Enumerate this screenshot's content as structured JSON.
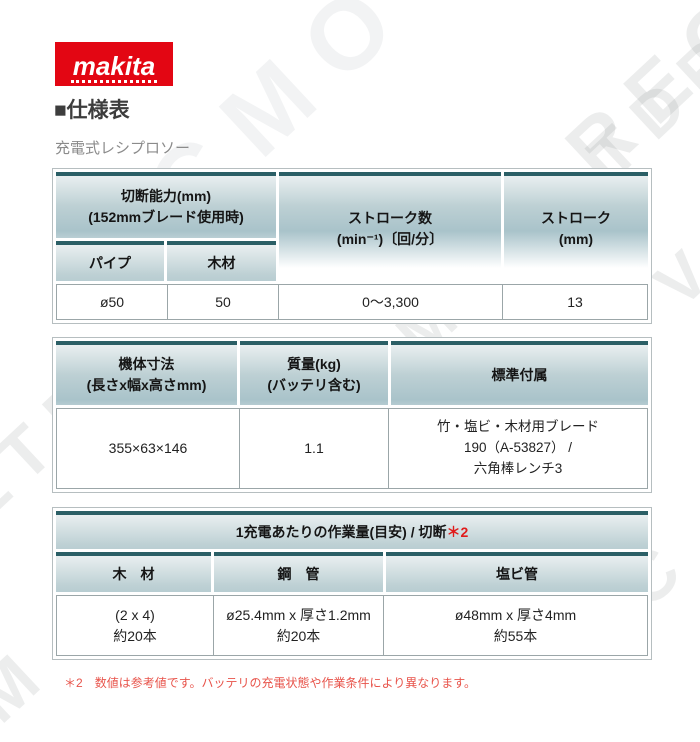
{
  "brand": {
    "logo_text": "makita"
  },
  "page": {
    "section_title": "■仕様表",
    "product_name": "充電式レシプロソー"
  },
  "watermark": {
    "fragments": [
      "MO..LTDREC",
      "ECMO",
      "LTD",
      "VC",
      "C",
      "M",
      "REC"
    ]
  },
  "spec_table1": {
    "headers": {
      "cut_capacity": {
        "line1": "切断能力(mm)",
        "line2": "(152mmブレード使用時)"
      },
      "pipe": "パイプ",
      "wood": "木材",
      "stroke_rate": {
        "line1": "ストローク数",
        "line2": "(min⁻¹)〔回/分〕"
      },
      "stroke_length": {
        "line1": "ストローク",
        "line2": "(mm)"
      }
    },
    "row": {
      "pipe": "ø50",
      "wood": "50",
      "stroke_rate": "0～3,300",
      "stroke_length": "13"
    }
  },
  "spec_table2": {
    "headers": {
      "body_size": {
        "line1": "機体寸法",
        "line2": "(長さx幅x高さmm)"
      },
      "weight": {
        "line1": "質量(kg)",
        "line2": "(バッテリ含む)"
      },
      "accessories": "標準付属"
    },
    "row": {
      "body_size": "355×63×146",
      "weight": "1.1",
      "accessories": {
        "line1": "竹・塩ビ・木材用ブレード",
        "line2": "190（A-53827） /",
        "line3": "六角棒レンチ3"
      }
    }
  },
  "work_table": {
    "title": {
      "main": "1充電あたりの作業量(目安) / 切断",
      "note": "＊2"
    },
    "headers": {
      "wood": "木　材",
      "steel_pipe": "鋼　管",
      "pvc_pipe": "塩ビ管"
    },
    "row": {
      "wood": {
        "line1": "(2 x 4)",
        "line2": "約20本"
      },
      "steel_pipe": {
        "line1": "ø25.4mm x 厚さ1.2mm",
        "line2": "約20本"
      },
      "pvc_pipe": {
        "line1": "ø48mm x 厚さ4mm",
        "line2": "約55本"
      }
    }
  },
  "footnote": {
    "marker": "＊2",
    "text": "数値は参考値です。バッテリの充電状態や作業条件により異なります。"
  },
  "colors": {
    "logo_red": "#e30613",
    "teal_header_border": "#2b5f66",
    "header_gradient_mid": "#a9c3ca",
    "accent_red": "#e01b1b",
    "footnote_red": "#e8544b",
    "table_border": "#b6bec0"
  }
}
